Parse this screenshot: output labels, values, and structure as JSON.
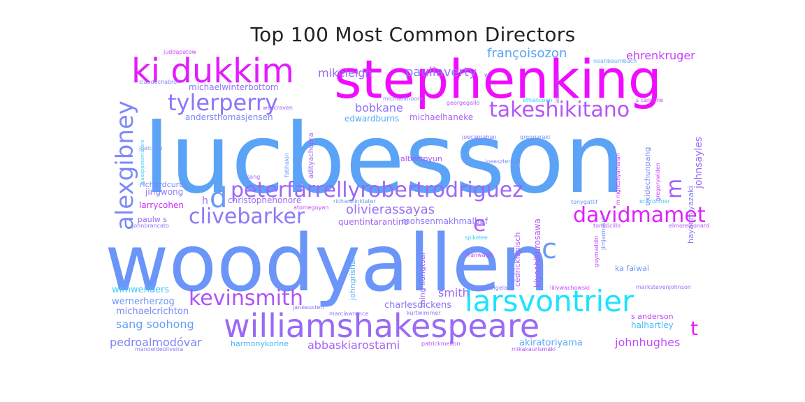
{
  "chart_data": {
    "type": "wordcloud",
    "title": "Top 100 Most Common Directors",
    "words": [
      {
        "text": "lucbesson",
        "color": "#5ba3f7"
      },
      {
        "text": "woodyallen",
        "color": "#6b95f8"
      },
      {
        "text": "stephenking",
        "color": "#f00cff"
      },
      {
        "text": "ki dukkim",
        "color": "#e21dfd"
      },
      {
        "text": "williamshakespeare",
        "color": "#9a6af6"
      },
      {
        "text": "larsvontrier",
        "color": "#1ce3fe"
      },
      {
        "text": "peterfarrellyrobertrodriguez",
        "color": "#9c67f7"
      },
      {
        "text": "tylerperry",
        "color": "#8b77f7"
      },
      {
        "text": "takeshikitano",
        "color": "#b357f7"
      },
      {
        "text": "davidmamet",
        "color": "#e021fd"
      },
      {
        "text": "clivebarker",
        "color": "#8a7af7"
      },
      {
        "text": "kevinsmith",
        "color": "#ae54f7"
      },
      {
        "text": "alexgibney",
        "color": "#7b8af7"
      },
      {
        "text": "d",
        "color": "#6c99f8"
      },
      {
        "text": "c",
        "color": "#6b9af8"
      },
      {
        "text": "e",
        "color": "#b159f7"
      },
      {
        "text": "m",
        "color": "#a85ef7"
      },
      {
        "text": "t",
        "color": "#ee14fe"
      },
      {
        "text": "olivierassayas",
        "color": "#9a6df7"
      },
      {
        "text": "paullaverty",
        "color": "#8a7bf7"
      },
      {
        "text": "françoisozon",
        "color": "#5aa6f7"
      },
      {
        "text": "ehrenkruger",
        "color": "#c93dfb"
      },
      {
        "text": "mikeleigh",
        "color": "#9468f7"
      },
      {
        "text": "bobkane",
        "color": "#8e74f7"
      },
      {
        "text": "sang soohong",
        "color": "#64a0f7"
      },
      {
        "text": "pedroalmodóvar",
        "color": "#7d86f7"
      },
      {
        "text": "abbaskiarostami",
        "color": "#a761f7"
      },
      {
        "text": "johnhughes",
        "color": "#bd4cf9"
      },
      {
        "text": "johnsayles",
        "color": "#9d69f7"
      },
      {
        "text": "smith",
        "color": "#9c68f7"
      },
      {
        "text": "wimwenders",
        "color": "#3ccaf9"
      },
      {
        "text": "wernerherzog",
        "color": "#6a97f7"
      },
      {
        "text": "michaelcrichton",
        "color": "#7a89f7"
      },
      {
        "text": "charlesdickens",
        "color": "#8e73f7"
      },
      {
        "text": "quentintarantino",
        "color": "#a463f7"
      },
      {
        "text": "akiratoriyama",
        "color": "#5aa8f7"
      },
      {
        "text": "halhartley",
        "color": "#45c0f9"
      },
      {
        "text": "s anderson",
        "color": "#c043fa"
      },
      {
        "text": "larrycohen",
        "color": "#d02cfb"
      },
      {
        "text": "jingwong",
        "color": "#8a79f7"
      },
      {
        "text": "richardcurtis",
        "color": "#7b88f7"
      },
      {
        "text": "christophehonoré",
        "color": "#9a6cf7"
      },
      {
        "text": "paulw s",
        "color": "#9c6cf7"
      },
      {
        "text": "andersthomasjensen",
        "color": "#7b88f7"
      },
      {
        "text": "michaelwinterbottom",
        "color": "#8c78f7"
      },
      {
        "text": "edwardburns",
        "color": "#55abf8"
      },
      {
        "text": "michaelhaneke",
        "color": "#a664f7"
      },
      {
        "text": "albertpyun",
        "color": "#ad56f7"
      },
      {
        "text": "mohsenmakhmalbaf",
        "color": "#8a7af7"
      },
      {
        "text": "kiyoshikurosawa",
        "color": "#b657f7"
      },
      {
        "text": "hayaomiyazaki",
        "color": "#8a7af7"
      },
      {
        "text": "oxidechunpang",
        "color": "#7c89f7"
      },
      {
        "text": "ka faiwai",
        "color": "#6699f7"
      },
      {
        "text": "harmonykorine",
        "color": "#4eb3f7"
      },
      {
        "text": "johngrisham",
        "color": "#5ab0f7"
      },
      {
        "text": "ming liangtsai",
        "color": "#9a6cf7"
      },
      {
        "text": "cédricklapisch",
        "color": "#ae59f7"
      },
      {
        "text": "adityachopra",
        "color": "#a063f7"
      },
      {
        "text": "h",
        "color": "#9c6cf7"
      },
      {
        "text": "juddapatow",
        "color": "#c646fa"
      },
      {
        "text": "claudechabrol",
        "color": "#8386f7"
      },
      {
        "text": "wescraven",
        "color": "#a760f7"
      },
      {
        "text": "joelcoen",
        "color": "#6d99f7"
      },
      {
        "text": "giuseppetornatore",
        "color": "#45c6f8"
      },
      {
        "text": "fatihakin",
        "color": "#6b95f8"
      },
      {
        "text": "sang",
        "color": "#9d69f7"
      },
      {
        "text": "atomegoyan",
        "color": "#c446fa"
      },
      {
        "text": "richardlinklater",
        "color": "#6b98f7"
      },
      {
        "text": "johnbrancato",
        "color": "#8e74f7"
      },
      {
        "text": "michaelmoore",
        "color": "#8a7af7"
      },
      {
        "text": "georgegallo",
        "color": "#b456f7"
      },
      {
        "text": "ethancoen",
        "color": "#35d1fa"
      },
      {
        "text": "noahbaumbach",
        "color": "#5caaf7"
      },
      {
        "text": "s cardone",
        "color": "#c046fa"
      },
      {
        "text": "adamrifkin",
        "color": "#b34ffa"
      },
      {
        "text": "joecarnahan",
        "color": "#8e76f7"
      },
      {
        "text": "greggaraki",
        "color": "#7b8df7"
      },
      {
        "text": "joeeszterhas",
        "color": "#7b8bf7"
      },
      {
        "text": "m nightshyamalan",
        "color": "#cd35fb"
      },
      {
        "text": "jimjarmusch",
        "color": "#7c88f7"
      },
      {
        "text": "gregorywiden",
        "color": "#c346fa"
      },
      {
        "text": "tonygatlif",
        "color": "#6b95f8"
      },
      {
        "text": "ericrohmer",
        "color": "#3dcaf9"
      },
      {
        "text": "tomdicillo",
        "color": "#b052f7"
      },
      {
        "text": "elmoreleonard",
        "color": "#b456f7"
      },
      {
        "text": "guymaddin",
        "color": "#c046fa"
      },
      {
        "text": "spikelee",
        "color": "#3ccaf9"
      },
      {
        "text": "franwalsh",
        "color": "#c646fa"
      },
      {
        "text": "lillywachowski",
        "color": "#c646fa"
      },
      {
        "text": "brianhelgeland",
        "color": "#8a7af7"
      },
      {
        "text": "markstevenjohnson",
        "color": "#9c6cf7"
      },
      {
        "text": "marclawrence",
        "color": "#8e74f7"
      },
      {
        "text": "janeausten",
        "color": "#8e74f7"
      },
      {
        "text": "kurtwimmer",
        "color": "#8a7af7"
      },
      {
        "text": "patrickmelton",
        "color": "#ae56f7"
      },
      {
        "text": "mikakaurismäki",
        "color": "#ae56f7"
      },
      {
        "text": "manoeldeoliveira",
        "color": "#8e7cf7"
      },
      {
        "text": "w",
        "color": "#9c6cf7"
      },
      {
        "text": "l",
        "color": "#9c6cf7"
      }
    ]
  }
}
